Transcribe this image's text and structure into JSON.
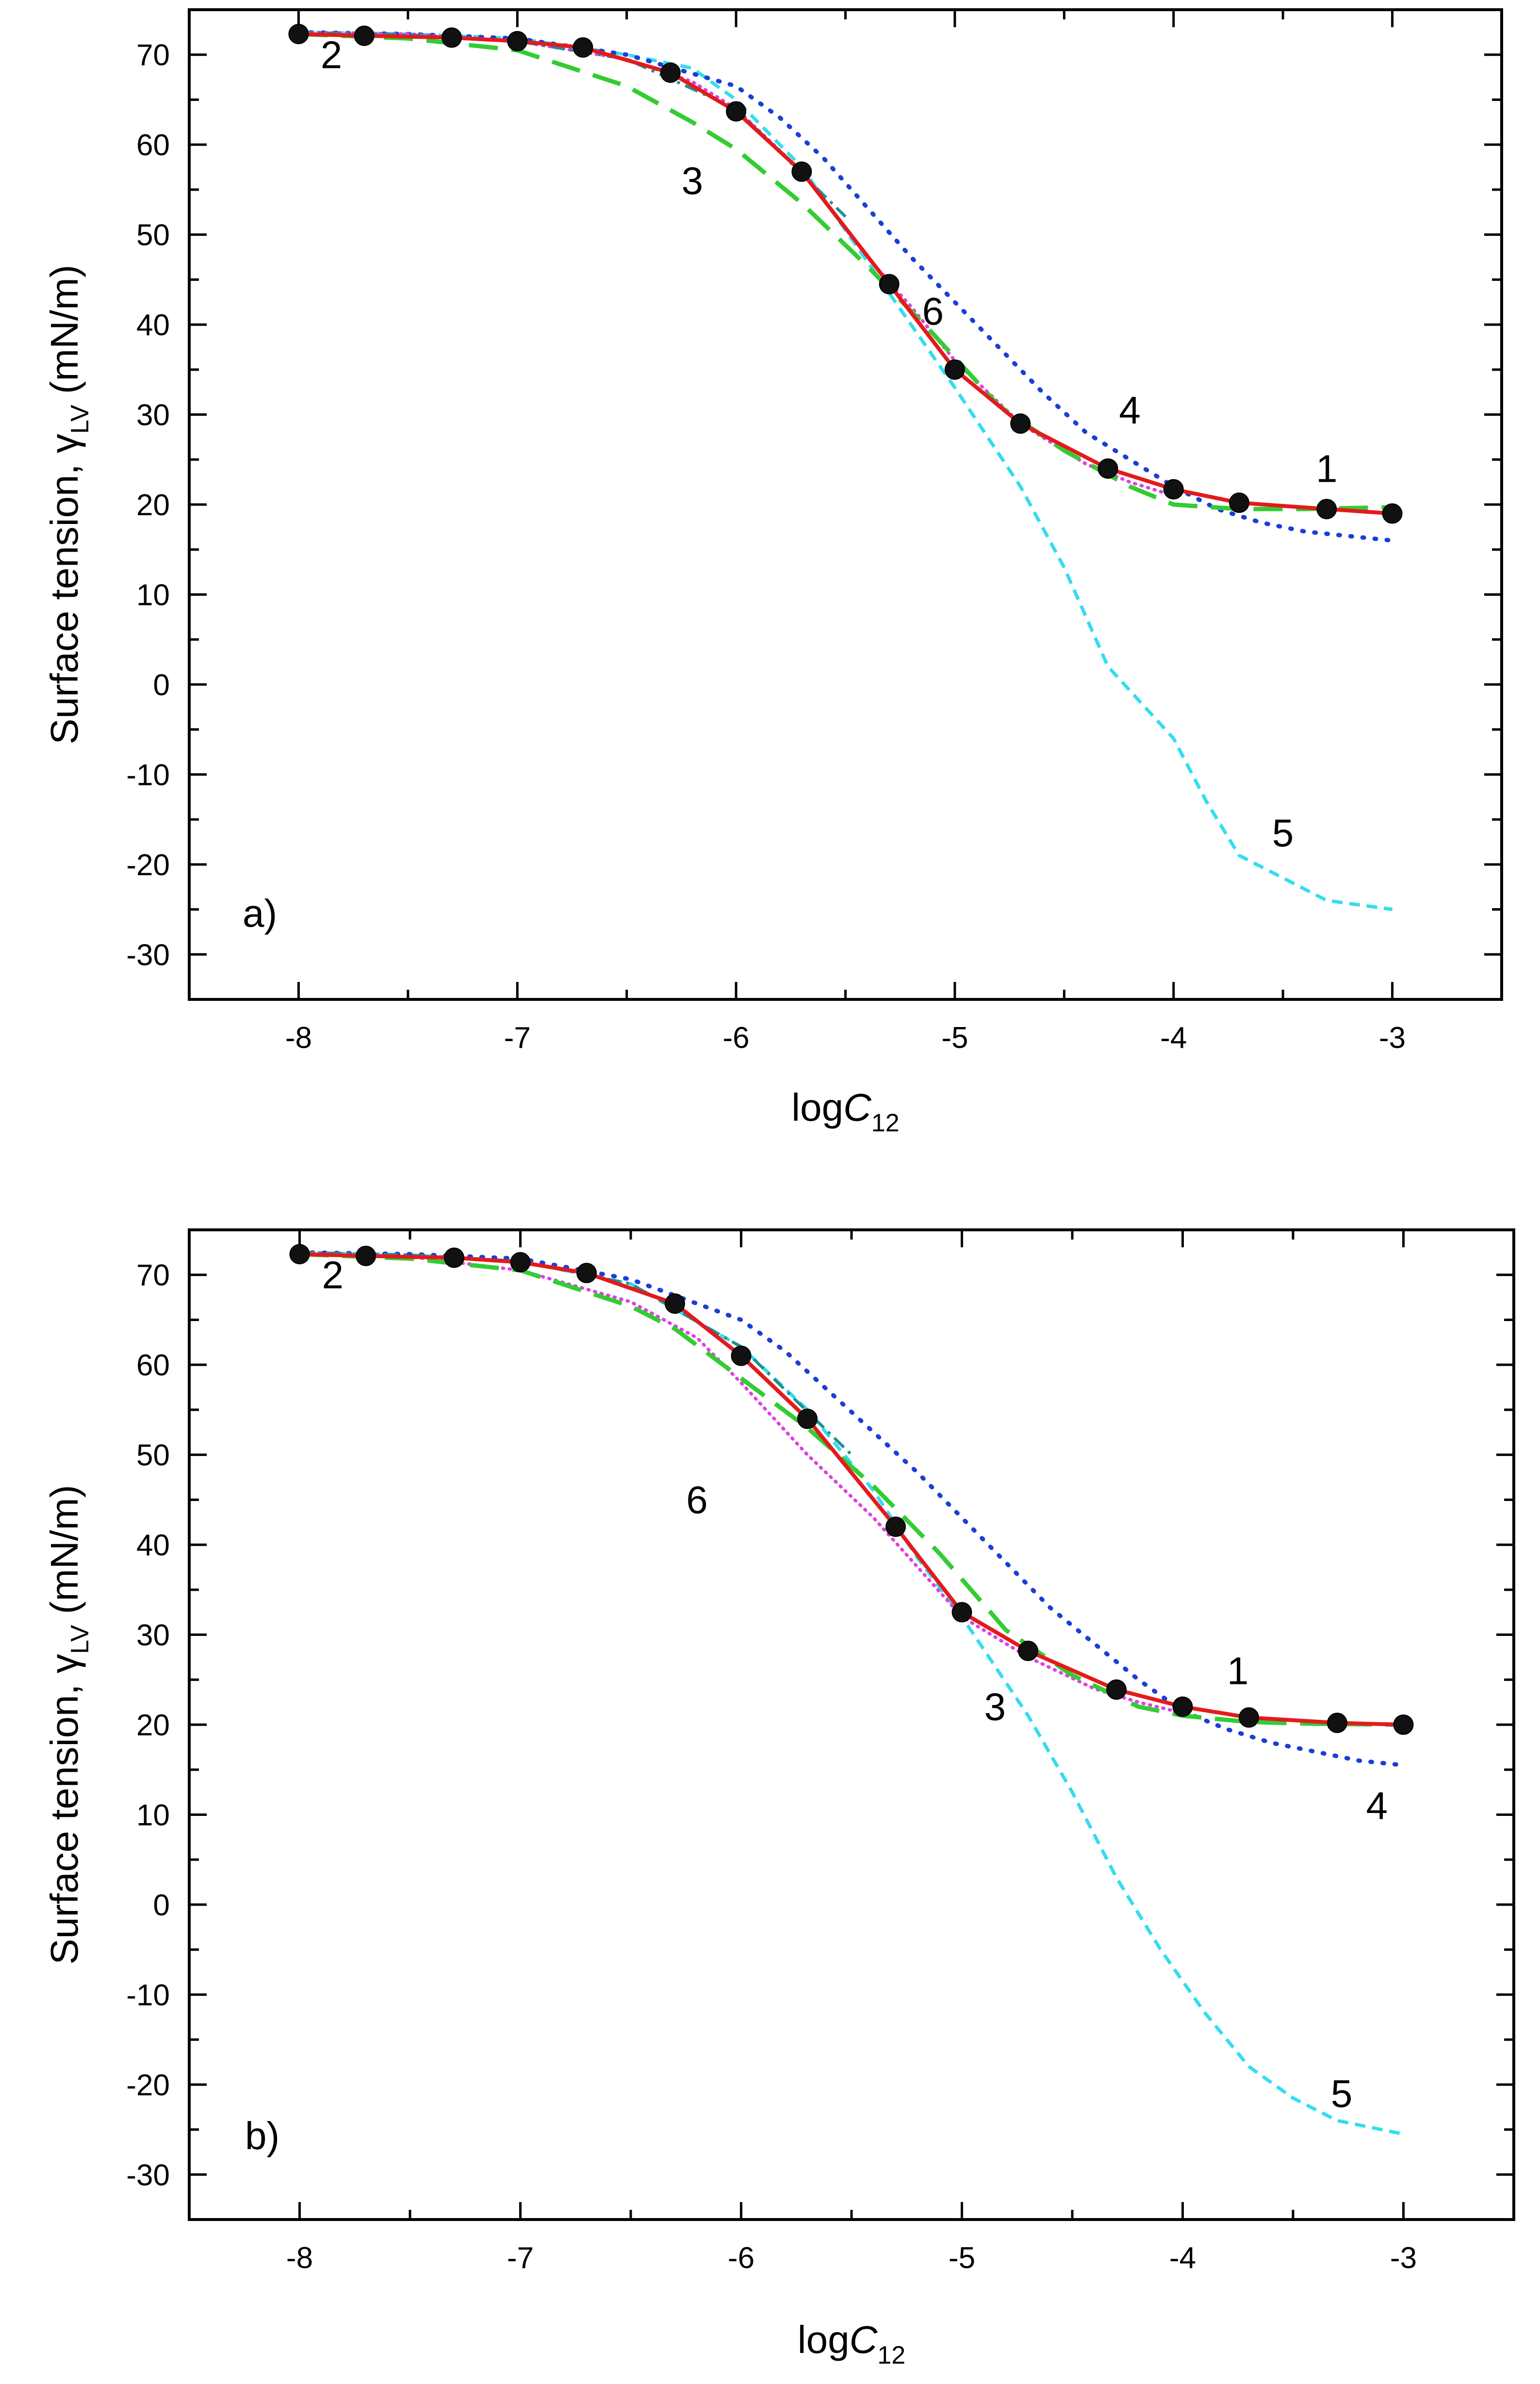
{
  "chart_data": [
    {
      "type": "line",
      "panel_label": "a)",
      "xlabel": {
        "main": "log",
        "italic": "C",
        "sub": "12"
      },
      "ylabel": {
        "main": "Surface tension, γ",
        "sub": "LV",
        "unit": " (mN/m)"
      },
      "xlim": [
        -8.5,
        -2.5
      ],
      "ylim": [
        -35,
        75
      ],
      "x_ticks": [
        -8,
        -7,
        -6,
        -5,
        -4,
        -3
      ],
      "x_tick_labels": [
        "-8",
        "-7",
        "-6",
        "-5",
        "-4",
        "-3"
      ],
      "y_ticks": [
        -30,
        -20,
        -10,
        0,
        10,
        20,
        30,
        40,
        50,
        60,
        70
      ],
      "y_tick_labels": [
        "-30",
        "-20",
        "-10",
        "0",
        "10",
        "20",
        "30",
        "40",
        "50",
        "60",
        "70"
      ],
      "series": [
        {
          "name": "1",
          "style": "solid",
          "color": "#e41a1c",
          "markers": true,
          "x": [
            -8,
            -7.7,
            -7.3,
            -7,
            -6.7,
            -6.3,
            -6,
            -5.7,
            -5.3,
            -5,
            -4.7,
            -4.3,
            -4,
            -3.7,
            -3.3,
            -3
          ],
          "y": [
            72.3,
            72.1,
            71.9,
            71.5,
            70.8,
            68,
            63.7,
            57,
            44.5,
            35,
            29,
            24,
            21.7,
            20.2,
            19.5,
            19
          ]
        },
        {
          "name": "2",
          "style": "dashdot",
          "color": "#1f8f8f",
          "x": [
            -8,
            -7.5,
            -7,
            -6.5,
            -6,
            -5.5
          ],
          "y": [
            72.5,
            72.2,
            71.5,
            69.5,
            64,
            52
          ]
        },
        {
          "name": "3",
          "style": "longdash",
          "color": "#33cc33",
          "x": [
            -8,
            -7.5,
            -7,
            -6.5,
            -6.2,
            -6,
            -5.7,
            -5.4,
            -5.1,
            -4.8,
            -4.5,
            -4.2,
            -4,
            -3.7,
            -3.4,
            -3
          ],
          "y": [
            72.3,
            71.8,
            70.5,
            66.5,
            62.5,
            59.5,
            53.5,
            46.5,
            39,
            31,
            26,
            22,
            20,
            19.5,
            19.5,
            19.7
          ]
        },
        {
          "name": "4",
          "style": "dotted",
          "color": "#1a3fd6",
          "x": [
            -8,
            -7.5,
            -7,
            -6.5,
            -6,
            -5.8,
            -5.6,
            -5.4,
            -5.2,
            -5,
            -4.8,
            -4.6,
            -4.4,
            -4.2,
            -4,
            -3.8,
            -3.6,
            -3.4,
            -3.2,
            -3
          ],
          "y": [
            72.5,
            72.3,
            71.8,
            70,
            66.5,
            63,
            58.5,
            53,
            47.5,
            42.5,
            37.5,
            32.5,
            28,
            25,
            22,
            19.5,
            18,
            17,
            16.5,
            16
          ]
        },
        {
          "name": "5",
          "style": "shortdash",
          "color": "#33ddee",
          "x": [
            -8,
            -7.5,
            -7,
            -6.5,
            -6.2,
            -6,
            -5.7,
            -5.4,
            -5.2,
            -5,
            -4.7,
            -4.5,
            -4.3,
            -4.15,
            -4,
            -3.85,
            -3.7,
            -3.5,
            -3.3,
            -3
          ],
          "y": [
            72.5,
            72.3,
            71.8,
            70,
            68.5,
            65,
            57.5,
            47,
            40,
            33,
            22,
            13,
            2,
            -2,
            -6,
            -13,
            -19,
            -21.5,
            -24,
            -25
          ]
        },
        {
          "name": "6",
          "style": "densedot",
          "color": "#e040e0",
          "x": [
            -8,
            -7.5,
            -7,
            -6.5,
            -6.2,
            -6,
            -5.7,
            -5.4,
            -5.2,
            -5,
            -4.7,
            -4.4,
            -4.2,
            -4
          ],
          "y": [
            72.5,
            72.3,
            71.5,
            69.5,
            67,
            64,
            57,
            47.5,
            42,
            36,
            29,
            24.5,
            22.5,
            21
          ]
        }
      ],
      "annotations": [
        {
          "text": "1",
          "x": -3.3,
          "y": 22.5
        },
        {
          "text": "2",
          "x": -7.85,
          "y": 68.5
        },
        {
          "text": "3",
          "x": -6.2,
          "y": 54.5
        },
        {
          "text": "4",
          "x": -4.2,
          "y": 29
        },
        {
          "text": "5",
          "x": -3.5,
          "y": -18
        },
        {
          "text": "6",
          "x": -5.1,
          "y": 40
        }
      ]
    },
    {
      "type": "line",
      "panel_label": "b)",
      "xlabel": {
        "main": "log",
        "italic": "C",
        "sub": "12"
      },
      "ylabel": {
        "main": "Surface tension, γ",
        "sub": "LV",
        "unit": " (mN/m)"
      },
      "xlim": [
        -8.5,
        -2.5
      ],
      "ylim": [
        -35,
        75
      ],
      "x_ticks": [
        -8,
        -7,
        -6,
        -5,
        -4,
        -3
      ],
      "x_tick_labels": [
        "-8",
        "-7",
        "-6",
        "-5",
        "-4",
        "-3"
      ],
      "y_ticks": [
        -30,
        -20,
        -10,
        0,
        10,
        20,
        30,
        40,
        50,
        60,
        70
      ],
      "y_tick_labels": [
        "-30",
        "-20",
        "-10",
        "0",
        "10",
        "20",
        "30",
        "40",
        "50",
        "60",
        "70"
      ],
      "series": [
        {
          "name": "1",
          "style": "solid",
          "color": "#e41a1c",
          "markers": true,
          "x": [
            -8,
            -7.7,
            -7.3,
            -7,
            -6.7,
            -6.3,
            -6,
            -5.7,
            -5.3,
            -5,
            -4.7,
            -4.3,
            -4,
            -3.7,
            -3.3,
            -3
          ],
          "y": [
            72.3,
            72.1,
            71.9,
            71.4,
            70.2,
            66.8,
            61,
            54,
            42,
            32.5,
            28.2,
            23.9,
            22,
            20.8,
            20.2,
            20
          ]
        },
        {
          "name": "2",
          "style": "dashdot",
          "color": "#1f8f8f",
          "x": [
            -8,
            -7.5,
            -7,
            -6.5,
            -6,
            -5.5
          ],
          "y": [
            72.5,
            72.2,
            71.5,
            69,
            62,
            50
          ]
        },
        {
          "name": "3",
          "style": "longdash",
          "color": "#33cc33",
          "x": [
            -8,
            -7.5,
            -7,
            -6.5,
            -6.3,
            -6,
            -5.7,
            -5.4,
            -5.1,
            -4.8,
            -4.5,
            -4.2,
            -4,
            -3.7,
            -3.4,
            -3
          ],
          "y": [
            72.3,
            71.8,
            70.5,
            66.5,
            64,
            58.5,
            53,
            46.5,
            39,
            30.5,
            25.5,
            22,
            21,
            20.3,
            20.1,
            20
          ]
        },
        {
          "name": "4",
          "style": "dotted",
          "color": "#1a3fd6",
          "x": [
            -8,
            -7.5,
            -7,
            -6.5,
            -6,
            -5.8,
            -5.6,
            -5.4,
            -5.2,
            -5,
            -4.8,
            -4.6,
            -4.4,
            -4.2,
            -4,
            -3.8,
            -3.6,
            -3.4,
            -3.2,
            -3
          ],
          "y": [
            72.5,
            72.3,
            71.8,
            69.5,
            65,
            61.5,
            57,
            52.5,
            48,
            43,
            38,
            33,
            29,
            25,
            21.5,
            19.5,
            18,
            17,
            16,
            15.5
          ]
        },
        {
          "name": "5",
          "style": "shortdash",
          "color": "#33ddee",
          "x": [
            -8,
            -7.5,
            -7,
            -6.5,
            -6,
            -5.7,
            -5.4,
            -5.2,
            -5,
            -4.7,
            -4.5,
            -4.3,
            -4.1,
            -3.9,
            -3.7,
            -3.5,
            -3.3,
            -3
          ],
          "y": [
            72.5,
            72.2,
            71.5,
            69,
            62,
            55,
            46,
            38.5,
            32,
            21,
            12.5,
            3,
            -5,
            -12,
            -18,
            -21.5,
            -24,
            -25.5
          ]
        },
        {
          "name": "6",
          "style": "densedot",
          "color": "#e040e0",
          "x": [
            -8,
            -7.5,
            -7,
            -6.5,
            -6.2,
            -6,
            -5.7,
            -5.4,
            -5.2,
            -5,
            -4.7,
            -4.4,
            -4.2,
            -4
          ],
          "y": [
            72.5,
            72,
            70.5,
            67,
            63,
            58,
            50,
            43,
            37.5,
            32,
            27.5,
            24,
            22.5,
            21.3
          ]
        }
      ],
      "annotations": [
        {
          "text": "1",
          "x": -3.75,
          "y": 24.5
        },
        {
          "text": "2",
          "x": -7.85,
          "y": 68.5
        },
        {
          "text": "3",
          "x": -4.85,
          "y": 20.5
        },
        {
          "text": "4",
          "x": -3.12,
          "y": 9.5
        },
        {
          "text": "5",
          "x": -3.28,
          "y": -22.5
        },
        {
          "text": "6",
          "x": -6.2,
          "y": 43.5
        }
      ]
    }
  ]
}
